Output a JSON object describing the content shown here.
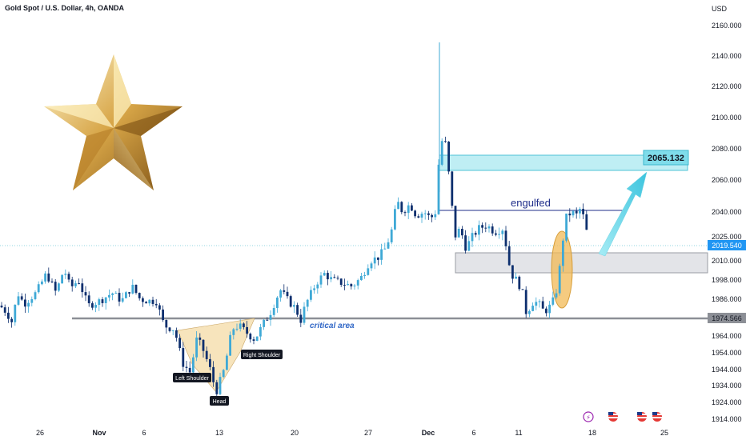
{
  "header": {
    "title": "Gold Spot / U.S. Dollar, 4h, OANDA",
    "currency": "USD"
  },
  "colors": {
    "up": "#3fa9d6",
    "down": "#0d2f6e",
    "zone_teal": "#9ee3ec",
    "zone_teal_border": "#4fc3d6",
    "zone_gray": "#dcdde1",
    "level_gray": "#8c8f96",
    "engulf_line": "#1f2d8a",
    "ellipse": "#f1b955",
    "shoulder_fill": "#f6dfb0",
    "arrow": "#58d0e6",
    "price_tag": "#2196f3"
  },
  "chart_data": {
    "type": "candlestick",
    "symbol": "Gold Spot / U.S. Dollar",
    "timeframe": "4h",
    "ylim": [
      1910,
      2170
    ],
    "y_ticks": [
      2160.0,
      2140.0,
      2120.0,
      2100.0,
      2080.0,
      2060.0,
      2040.0,
      2025.0,
      2010.0,
      1998.0,
      1986.0,
      1974.566,
      1964.0,
      1954.0,
      1944.0,
      1934.0,
      1924.0,
      1914.0
    ],
    "x_ticks": [
      "26",
      "Nov",
      "6",
      "13",
      "20",
      "27",
      "Dec",
      "6",
      "11",
      "18",
      "25"
    ],
    "current_price": "2019.540",
    "target_price": "2065.132",
    "support_level": "1974.566",
    "zones": {
      "target_zone": [
        2067,
        2077
      ],
      "demand_zone": [
        2000,
        2013
      ],
      "engulf_level": 2041
    },
    "annotations": {
      "engulfed": "engulfed",
      "critical_area": "critical area",
      "left_shoulder": "Left Shoulder",
      "head": "Head",
      "right_shoulder": "Right Shoulder"
    },
    "anchors": [
      [
        0,
        1982
      ],
      [
        8,
        1978
      ],
      [
        15,
        1972
      ],
      [
        22,
        1990
      ],
      [
        30,
        1983
      ],
      [
        45,
        1990
      ],
      [
        58,
        2002
      ],
      [
        70,
        1990
      ],
      [
        80,
        2005
      ],
      [
        88,
        1993
      ],
      [
        98,
        1998
      ],
      [
        110,
        1982
      ],
      [
        125,
        1985
      ],
      [
        140,
        1990
      ],
      [
        152,
        1985
      ],
      [
        165,
        1994
      ],
      [
        175,
        1986
      ],
      [
        185,
        1985
      ],
      [
        195,
        1985
      ],
      [
        205,
        1970
      ],
      [
        218,
        1968
      ],
      [
        228,
        1948
      ],
      [
        238,
        1942
      ],
      [
        245,
        1962
      ],
      [
        252,
        1958
      ],
      [
        262,
        1945
      ],
      [
        270,
        1930
      ],
      [
        280,
        1944
      ],
      [
        290,
        1968
      ],
      [
        298,
        1970
      ],
      [
        308,
        1966
      ],
      [
        318,
        1962
      ],
      [
        328,
        1970
      ],
      [
        338,
        1978
      ],
      [
        350,
        1992
      ],
      [
        360,
        1985
      ],
      [
        370,
        1980
      ],
      [
        375,
        1972
      ],
      [
        382,
        1983
      ],
      [
        395,
        1996
      ],
      [
        405,
        2002
      ],
      [
        415,
        1998
      ],
      [
        428,
        1996
      ],
      [
        440,
        1994
      ],
      [
        452,
        2000
      ],
      [
        462,
        2010
      ],
      [
        472,
        2012
      ],
      [
        482,
        2018
      ],
      [
        490,
        2030
      ],
      [
        496,
        2047
      ],
      [
        503,
        2040
      ],
      [
        512,
        2045
      ],
      [
        520,
        2038
      ],
      [
        530,
        2040
      ],
      [
        538,
        2036
      ],
      [
        544,
        2040
      ],
      [
        550,
        2085
      ],
      [
        556,
        2085
      ],
      [
        562,
        2058
      ],
      [
        568,
        2025
      ],
      [
        575,
        2030
      ],
      [
        582,
        2018
      ],
      [
        590,
        2025
      ],
      [
        598,
        2030
      ],
      [
        608,
        2032
      ],
      [
        618,
        2028
      ],
      [
        628,
        2030
      ],
      [
        633,
        2018
      ],
      [
        638,
        2002
      ],
      [
        645,
        1998
      ],
      [
        652,
        1992
      ],
      [
        658,
        1976
      ],
      [
        664,
        1984
      ],
      [
        672,
        1984
      ],
      [
        680,
        1978
      ],
      [
        688,
        1982
      ],
      [
        694,
        1988
      ],
      [
        700,
        2008
      ],
      [
        706,
        2036
      ],
      [
        714,
        2040
      ],
      [
        720,
        2038
      ],
      [
        726,
        2043
      ],
      [
        732,
        2030
      ],
      [
        737,
        2019.5
      ]
    ]
  }
}
